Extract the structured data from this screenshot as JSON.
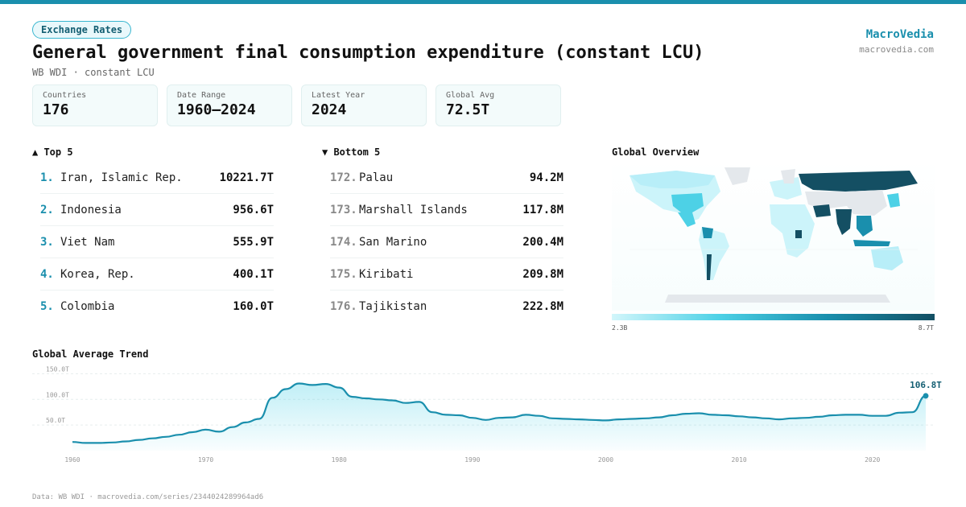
{
  "header": {
    "badge": "Exchange Rates",
    "title": "General government final consumption expenditure (constant LCU)",
    "subtitle": "WB WDI · constant LCU",
    "brand": "MacroVedia",
    "brand_url": "macrovedia.com"
  },
  "stats": [
    {
      "label": "Countries",
      "value": "176"
    },
    {
      "label": "Date Range",
      "value": "1960–2024"
    },
    {
      "label": "Latest Year",
      "value": "2024"
    },
    {
      "label": "Global Avg",
      "value": "72.5T"
    }
  ],
  "top5": {
    "heading": "▲ Top 5",
    "items": [
      {
        "rank": "1.",
        "name": "Iran, Islamic Rep.",
        "value": "10221.7T"
      },
      {
        "rank": "2.",
        "name": "Indonesia",
        "value": "956.6T"
      },
      {
        "rank": "3.",
        "name": "Viet Nam",
        "value": "555.9T"
      },
      {
        "rank": "4.",
        "name": "Korea, Rep.",
        "value": "400.1T"
      },
      {
        "rank": "5.",
        "name": "Colombia",
        "value": "160.0T"
      }
    ]
  },
  "bottom5": {
    "heading": "▼ Bottom 5",
    "items": [
      {
        "rank": "172.",
        "name": "Palau",
        "value": "94.2M"
      },
      {
        "rank": "173.",
        "name": "Marshall Islands",
        "value": "117.8M"
      },
      {
        "rank": "174.",
        "name": "San Marino",
        "value": "200.4M"
      },
      {
        "rank": "175.",
        "name": "Kiribati",
        "value": "209.8M"
      },
      {
        "rank": "176.",
        "name": "Tajikistan",
        "value": "222.8M"
      }
    ]
  },
  "map": {
    "heading": "Global Overview",
    "legend_min": "2.3B",
    "legend_max": "8.7T"
  },
  "colors": {
    "accent": "#1a8fad",
    "accent_dark": "#135e72",
    "light": "#4dd1e6",
    "dark": "#144f63"
  },
  "chart_data": {
    "type": "area",
    "title": "Global Average Trend",
    "yticks": [
      "150.0T",
      "100.0T",
      "50.0T"
    ],
    "ytick_values": [
      150,
      100,
      50
    ],
    "xticks": [
      "1960",
      "1970",
      "1980",
      "1990",
      "2000",
      "2010",
      "2020"
    ],
    "xtick_values": [
      1960,
      1970,
      1980,
      1990,
      2000,
      2010,
      2020
    ],
    "ylim": [
      0,
      160
    ],
    "xlim": [
      1960,
      2024
    ],
    "last_label": "106.8T",
    "x": [
      1960,
      1961,
      1962,
      1963,
      1964,
      1965,
      1966,
      1967,
      1968,
      1969,
      1970,
      1971,
      1972,
      1973,
      1974,
      1975,
      1976,
      1977,
      1978,
      1979,
      1980,
      1981,
      1982,
      1983,
      1984,
      1985,
      1986,
      1987,
      1988,
      1989,
      1990,
      1991,
      1992,
      1993,
      1994,
      1995,
      1996,
      1997,
      1998,
      1999,
      2000,
      2001,
      2002,
      2003,
      2004,
      2005,
      2006,
      2007,
      2008,
      2009,
      2010,
      2011,
      2012,
      2013,
      2014,
      2015,
      2016,
      2017,
      2018,
      2019,
      2020,
      2021,
      2022,
      2023,
      2024
    ],
    "values": [
      17,
      15,
      15,
      16,
      18,
      21,
      24,
      27,
      31,
      36,
      41,
      37,
      46,
      55,
      62,
      103,
      120,
      131,
      128,
      130,
      123,
      105,
      102,
      100,
      98,
      93,
      95,
      75,
      70,
      69,
      64,
      60,
      64,
      65,
      70,
      68,
      63,
      62,
      61,
      60,
      59,
      61,
      62,
      63,
      65,
      69,
      72,
      73,
      70,
      69,
      67,
      65,
      63,
      61,
      63,
      64,
      66,
      69,
      70,
      70,
      68,
      68,
      74,
      75,
      106.8
    ]
  },
  "footer": {
    "source": "Data: WB WDI · macrovedia.com/series/2344024289964ad6"
  }
}
